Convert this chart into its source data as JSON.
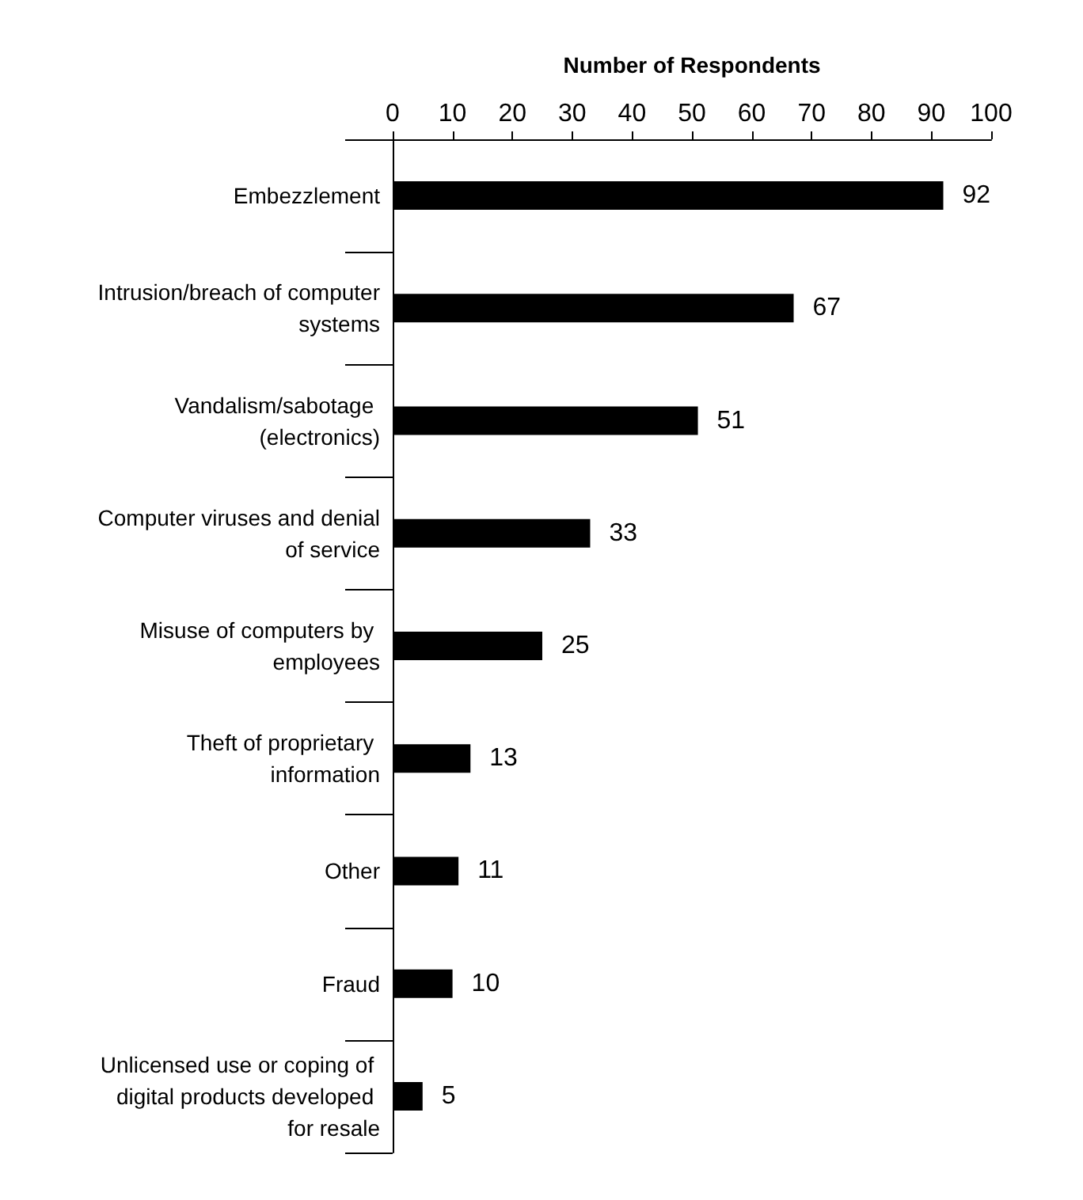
{
  "chart_data": {
    "type": "bar",
    "orientation": "horizontal",
    "xlabel": "Number of Respondents",
    "categories": [
      "Embezzlement",
      "Intrusion/breach of computer systems",
      "Vandalism/sabotage (electronics)",
      "Computer viruses and denial of service",
      "Misuse of computers by employees",
      "Theft of proprietary information",
      "Other",
      "Fraud",
      "Unlicensed use or coping of digital products developed for resale"
    ],
    "values": [
      92,
      67,
      51,
      33,
      25,
      13,
      11,
      10,
      5
    ],
    "color": "#000000",
    "xlim": [
      0,
      100
    ],
    "xticks": [
      0,
      10,
      20,
      30,
      40,
      50,
      60,
      70,
      80,
      90,
      100
    ],
    "data_labels": true,
    "grid": false
  }
}
